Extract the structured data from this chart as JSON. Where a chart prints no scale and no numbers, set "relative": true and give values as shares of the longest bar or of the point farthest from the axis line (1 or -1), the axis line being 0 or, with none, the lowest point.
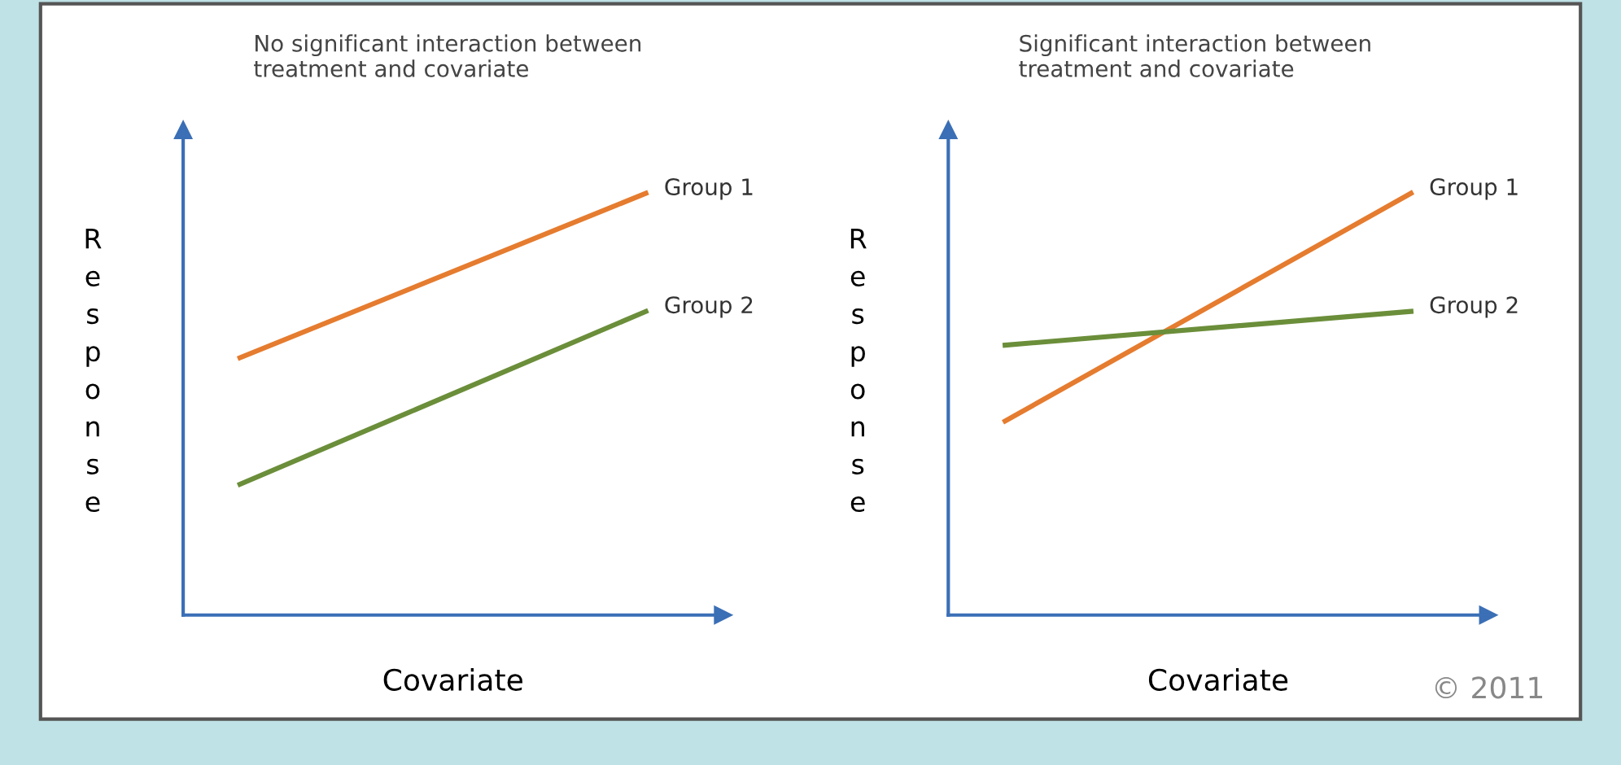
{
  "chart_data": [
    {
      "type": "line",
      "title": "No significant interaction between\ntreatment and covariate",
      "xlabel": "Covariate",
      "ylabel": "Response",
      "relative": true,
      "categories": [
        null,
        null
      ],
      "legend": false,
      "grid": false,
      "marker": "none",
      "line_style": "solid",
      "series": [
        {
          "name": "Group 1",
          "color": "#e57c2f",
          "values": [
            0.61,
            1
          ]
        },
        {
          "name": "Group 2",
          "color": "#6b8e3a",
          "values": [
            0.31,
            0.72
          ]
        }
      ]
    },
    {
      "type": "line",
      "title": "Significant interaction between\ntreatment and covariate",
      "xlabel": "Covariate",
      "ylabel": "Response",
      "relative": true,
      "categories": [
        null,
        null
      ],
      "legend": false,
      "grid": false,
      "marker": "none",
      "line_style": "solid",
      "annotations": [
        "© 2011"
      ],
      "series": [
        {
          "name": "Group 1",
          "color": "#e57c2f",
          "values": [
            0.46,
            1
          ]
        },
        {
          "name": "Group 2",
          "color": "#6b8e3a",
          "values": [
            0.64,
            0.72
          ]
        }
      ]
    }
  ]
}
